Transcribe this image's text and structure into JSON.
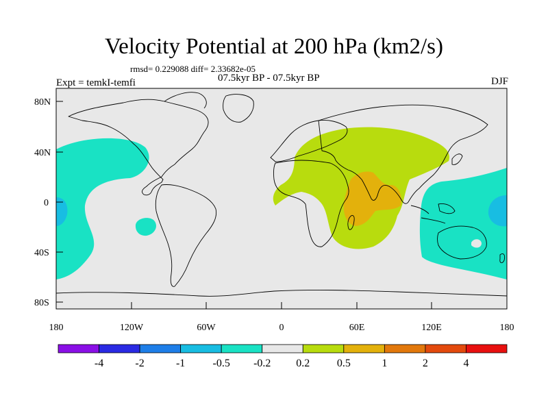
{
  "title": "Velocity Potential at 200 hPa (km2/s)",
  "stats": "rmsd= 0.229088 diff= 2.33682e-05",
  "subtitle": "07.5kyr BP - 07.5kyr BP",
  "expt": "Expt = temkI-temfi",
  "season": "DJF",
  "axes": {
    "lat_labels": [
      "80N",
      "40N",
      "0",
      "40S",
      "80S"
    ],
    "lon_labels": [
      "180",
      "120W",
      "60W",
      "0",
      "60E",
      "120E",
      "180"
    ]
  },
  "colorbar": {
    "labels": [
      "-4",
      "-2",
      "-1",
      "-0.5",
      "-0.2",
      "0.2",
      "0.5",
      "1",
      "2",
      "4"
    ],
    "colors": [
      "#8a0fe6",
      "#2a2ae3",
      "#1e7ee8",
      "#18bde2",
      "#19e2c4",
      "#e8e8e8",
      "#b8dc0e",
      "#e3b10c",
      "#e2780c",
      "#e34a0d",
      "#e8100f"
    ]
  },
  "colors": {
    "ocean_land_background": "#e8e8e8",
    "neg_small": "#19e2c4",
    "neg_medium": "#18bde2",
    "pos_small": "#b8dc0e",
    "pos_medium": "#e3b10c"
  }
}
